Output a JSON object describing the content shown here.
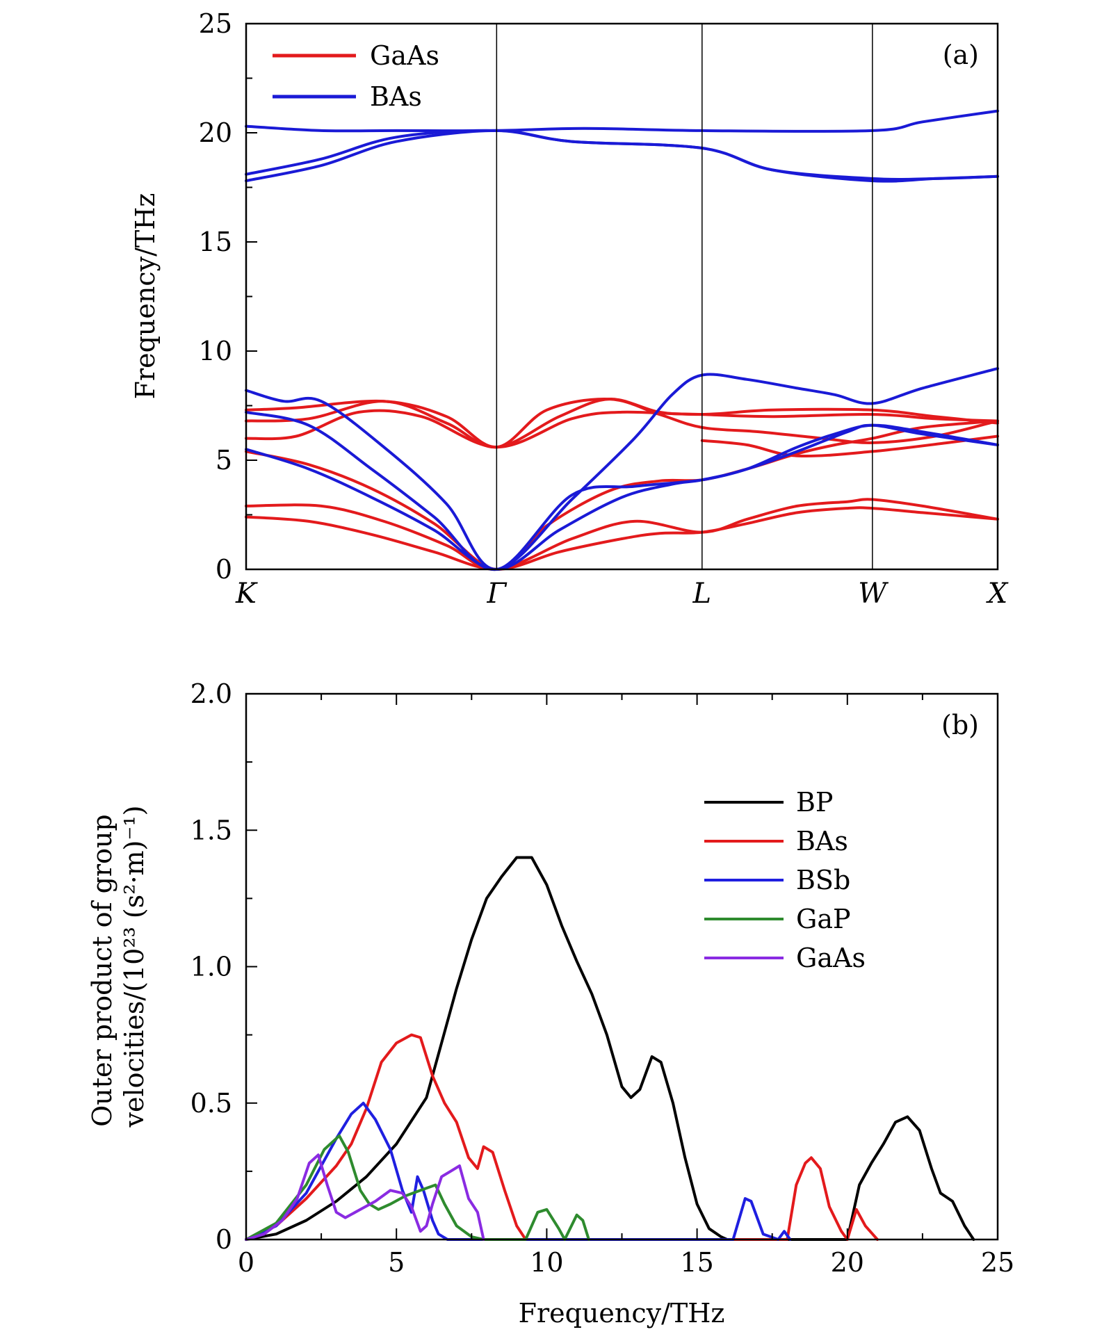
{
  "colors": {
    "GaAs": "#e31a1c",
    "BAs_a": "#1a1ad6",
    "BP": "#000000",
    "BAs_b": "#e31a1c",
    "BSb": "#1f1fe0",
    "GaP": "#2e8b2e",
    "GaAs_b": "#8a2be2"
  },
  "chart_data": [
    {
      "type": "line",
      "panel_label": "(a)",
      "xlabel": "",
      "ylabel": "Frequency/THz",
      "ylim": [
        0,
        25
      ],
      "yticks": [
        "0",
        "5",
        "10",
        "15",
        "20",
        "25"
      ],
      "high_symmetry_points": [
        {
          "label": "K",
          "x": 0.0
        },
        {
          "label": "Γ",
          "x": 1.0
        },
        {
          "label": "L",
          "x": 1.82
        },
        {
          "label": "W",
          "x": 2.5
        },
        {
          "label": "X",
          "x": 3.0
        }
      ],
      "legend": {
        "position": "top-left",
        "entries": [
          "GaAs",
          "BAs"
        ]
      },
      "series": [
        {
          "name": "GaAs",
          "color_key": "GaAs",
          "bands": [
            [
              [
                0,
                2.4
              ],
              [
                0.25,
                2.2
              ],
              [
                0.5,
                1.6
              ],
              [
                0.75,
                0.8
              ],
              [
                1,
                0
              ],
              [
                1.25,
                0.8
              ],
              [
                1.5,
                1.4
              ],
              [
                1.65,
                1.65
              ],
              [
                1.82,
                1.7
              ],
              [
                2.0,
                2.1
              ],
              [
                2.2,
                2.6
              ],
              [
                2.4,
                2.8
              ],
              [
                2.5,
                2.8
              ],
              [
                2.7,
                2.6
              ],
              [
                3,
                2.3
              ]
            ],
            [
              [
                0,
                2.9
              ],
              [
                0.3,
                2.9
              ],
              [
                0.55,
                2.2
              ],
              [
                0.8,
                1.1
              ],
              [
                1,
                0
              ],
              [
                1.3,
                1.4
              ],
              [
                1.55,
                2.2
              ],
              [
                1.82,
                1.7
              ],
              [
                2.0,
                2.3
              ],
              [
                2.2,
                2.9
              ],
              [
                2.4,
                3.1
              ],
              [
                2.5,
                3.2
              ],
              [
                2.7,
                2.9
              ],
              [
                3,
                2.3
              ]
            ],
            [
              [
                0,
                5.4
              ],
              [
                0.25,
                4.8
              ],
              [
                0.5,
                3.7
              ],
              [
                0.75,
                2.1
              ],
              [
                1,
                0
              ],
              [
                1.2,
                2.0
              ],
              [
                1.45,
                3.6
              ],
              [
                1.65,
                4.05
              ],
              [
                1.82,
                4.1
              ],
              [
                2.0,
                4.6
              ],
              [
                2.2,
                5.3
              ],
              [
                2.35,
                5.7
              ],
              [
                2.5,
                6.0
              ],
              [
                2.7,
                6.5
              ],
              [
                3,
                6.8
              ]
            ],
            [
              [
                0,
                6.0
              ],
              [
                0.2,
                6.1
              ],
              [
                0.45,
                7.2
              ],
              [
                0.7,
                7.0
              ],
              [
                1,
                5.6
              ],
              [
                1.3,
                6.9
              ],
              [
                1.5,
                7.2
              ],
              [
                1.82,
                7.1
              ],
              [
                2.1,
                7.3
              ],
              [
                2.5,
                7.3
              ],
              [
                2.75,
                7.0
              ],
              [
                3,
                6.7
              ]
            ],
            [
              [
                0,
                6.8
              ],
              [
                0.25,
                6.9
              ],
              [
                0.55,
                7.7
              ],
              [
                0.8,
                6.7
              ],
              [
                1,
                5.6
              ],
              [
                1.25,
                7.0
              ],
              [
                1.45,
                7.8
              ],
              [
                1.65,
                7.2
              ],
              [
                1.82,
                7.1
              ],
              [
                2.1,
                7.0
              ],
              [
                2.5,
                7.1
              ],
              [
                2.75,
                6.9
              ],
              [
                3,
                6.8
              ]
            ],
            [
              [
                0,
                7.3
              ],
              [
                0.2,
                7.4
              ],
              [
                0.55,
                7.7
              ],
              [
                0.8,
                7.0
              ],
              [
                1,
                5.6
              ],
              [
                1.2,
                7.3
              ],
              [
                1.45,
                7.8
              ],
              [
                1.65,
                7.1
              ],
              [
                1.82,
                6.5
              ],
              [
                2.05,
                6.3
              ],
              [
                2.3,
                6.0
              ],
              [
                2.5,
                5.8
              ],
              [
                2.75,
                6.1
              ],
              [
                3,
                6.8
              ]
            ],
            [
              [
                1.82,
                5.9
              ],
              [
                2.0,
                5.7
              ],
              [
                2.2,
                5.2
              ],
              [
                2.5,
                5.4
              ],
              [
                2.8,
                5.8
              ],
              [
                3,
                6.1
              ]
            ]
          ]
        },
        {
          "name": "BAs",
          "color_key": "BAs_a",
          "bands": [
            [
              [
                0,
                5.5
              ],
              [
                0.25,
                4.6
              ],
              [
                0.5,
                3.3
              ],
              [
                0.75,
                1.8
              ],
              [
                1,
                0
              ],
              [
                1.25,
                1.8
              ],
              [
                1.5,
                3.3
              ],
              [
                1.7,
                3.9
              ],
              [
                1.82,
                4.1
              ],
              [
                2.0,
                4.6
              ],
              [
                2.2,
                5.6
              ],
              [
                2.35,
                6.2
              ],
              [
                2.5,
                6.6
              ],
              [
                2.7,
                6.3
              ],
              [
                3,
                5.7
              ]
            ],
            [
              [
                0,
                7.2
              ],
              [
                0.25,
                6.6
              ],
              [
                0.5,
                4.6
              ],
              [
                0.75,
                2.4
              ],
              [
                1,
                0
              ],
              [
                1.3,
                3.2
              ],
              [
                1.55,
                6.0
              ],
              [
                1.7,
                8.0
              ],
              [
                1.82,
                8.9
              ],
              [
                2.0,
                8.7
              ],
              [
                2.2,
                8.3
              ],
              [
                2.35,
                8.0
              ],
              [
                2.5,
                7.6
              ],
              [
                2.7,
                8.3
              ],
              [
                3,
                9.2
              ]
            ],
            [
              [
                0,
                8.2
              ],
              [
                0.15,
                7.7
              ],
              [
                0.3,
                7.7
              ],
              [
                0.55,
                5.6
              ],
              [
                0.8,
                3.0
              ],
              [
                1,
                0
              ],
              [
                1.3,
                3.4
              ],
              [
                1.55,
                3.8
              ],
              [
                1.82,
                4.1
              ],
              [
                2.0,
                4.6
              ],
              [
                2.2,
                5.4
              ],
              [
                2.4,
                6.3
              ],
              [
                2.5,
                6.6
              ],
              [
                2.7,
                6.2
              ],
              [
                3,
                5.7
              ]
            ],
            [
              [
                0,
                17.8
              ],
              [
                0.3,
                18.5
              ],
              [
                0.6,
                19.6
              ],
              [
                1,
                20.1
              ],
              [
                1.3,
                19.6
              ],
              [
                1.82,
                19.3
              ],
              [
                2.1,
                18.3
              ],
              [
                2.5,
                17.8
              ],
              [
                2.75,
                17.9
              ],
              [
                3,
                18.0
              ]
            ],
            [
              [
                0,
                18.1
              ],
              [
                0.3,
                18.8
              ],
              [
                0.6,
                19.8
              ],
              [
                1,
                20.1
              ],
              [
                1.3,
                19.6
              ],
              [
                1.82,
                19.3
              ],
              [
                2.1,
                18.3
              ],
              [
                2.5,
                17.9
              ],
              [
                2.75,
                17.9
              ],
              [
                3,
                18.0
              ]
            ],
            [
              [
                0,
                20.3
              ],
              [
                0.3,
                20.1
              ],
              [
                0.6,
                20.1
              ],
              [
                1,
                20.1
              ],
              [
                1.35,
                20.2
              ],
              [
                1.82,
                20.1
              ],
              [
                2.5,
                20.1
              ],
              [
                2.7,
                20.5
              ],
              [
                3,
                21.0
              ]
            ]
          ]
        }
      ]
    },
    {
      "type": "line",
      "panel_label": "(b)",
      "xlabel": "Frequency/THz",
      "ylabel": "Outer product of group velocities/(10²³ (s²·m)⁻¹)",
      "xlim": [
        0,
        25
      ],
      "ylim": [
        0,
        2.0
      ],
      "xticks": [
        "0",
        "5",
        "10",
        "15",
        "20",
        "25"
      ],
      "yticks": [
        "0",
        "0.5",
        "1.0",
        "1.5",
        "2.0"
      ],
      "legend": {
        "position": "right-middle",
        "entries": [
          "BP",
          "BAs",
          "BSb",
          "GaP",
          "GaAs"
        ]
      },
      "series": [
        {
          "name": "BP",
          "color_key": "BP",
          "x": [
            0,
            1,
            2,
            3,
            4,
            5,
            6,
            6.5,
            7,
            7.5,
            8,
            8.5,
            9,
            9.5,
            10,
            10.5,
            11,
            11.5,
            12,
            12.5,
            12.8,
            13.1,
            13.5,
            13.8,
            14.2,
            14.6,
            15,
            15.4,
            15.8,
            16,
            20,
            20.4,
            20.8,
            21.2,
            21.6,
            22,
            22.4,
            22.8,
            23.1,
            23.5,
            23.9,
            24.2
          ],
          "y": [
            0,
            0.02,
            0.07,
            0.14,
            0.23,
            0.35,
            0.52,
            0.72,
            0.92,
            1.1,
            1.25,
            1.33,
            1.4,
            1.4,
            1.3,
            1.15,
            1.02,
            0.9,
            0.75,
            0.56,
            0.52,
            0.55,
            0.67,
            0.65,
            0.5,
            0.3,
            0.13,
            0.04,
            0.01,
            0,
            0,
            0.2,
            0.28,
            0.35,
            0.43,
            0.45,
            0.4,
            0.26,
            0.17,
            0.14,
            0.05,
            0
          ]
        },
        {
          "name": "BAs",
          "color_key": "BAs_b",
          "x": [
            0,
            1,
            2,
            3,
            3.5,
            4,
            4.5,
            5,
            5.5,
            5.8,
            6.2,
            6.6,
            7,
            7.4,
            7.7,
            7.9,
            8.2,
            8.6,
            9,
            9.3,
            18,
            18.3,
            18.6,
            18.8,
            19.1,
            19.4,
            19.8,
            20,
            20.3,
            20.6,
            21
          ],
          "y": [
            0,
            0.05,
            0.15,
            0.27,
            0.35,
            0.48,
            0.65,
            0.72,
            0.75,
            0.74,
            0.6,
            0.5,
            0.43,
            0.3,
            0.26,
            0.34,
            0.32,
            0.18,
            0.05,
            0,
            0,
            0.2,
            0.28,
            0.3,
            0.26,
            0.12,
            0.03,
            0,
            0.11,
            0.05,
            0
          ]
        },
        {
          "name": "BSb",
          "color_key": "BSb",
          "x": [
            0,
            1,
            2,
            3,
            3.5,
            3.9,
            4.3,
            4.8,
            5.2,
            5.5,
            5.7,
            5.9,
            6.2,
            6.4,
            6.7,
            16.2,
            16.6,
            16.8,
            17.2,
            17.7,
            17.9,
            18.1
          ],
          "y": [
            0,
            0.05,
            0.17,
            0.37,
            0.46,
            0.5,
            0.44,
            0.33,
            0.18,
            0.1,
            0.23,
            0.18,
            0.07,
            0.02,
            0,
            0,
            0.15,
            0.14,
            0.02,
            0,
            0.03,
            0
          ],
          "flat_to": 16.2
        },
        {
          "name": "GaP",
          "color_key": "GaP",
          "x": [
            0,
            1,
            2,
            2.6,
            3.1,
            3.4,
            3.8,
            4.1,
            4.4,
            4.8,
            5.3,
            5.8,
            6.3,
            6.6,
            7,
            7.5,
            7.9,
            9.3,
            9.7,
            10,
            10.4,
            10.6,
            11,
            11.2,
            11.4
          ],
          "y": [
            0,
            0.06,
            0.2,
            0.33,
            0.38,
            0.32,
            0.18,
            0.13,
            0.11,
            0.13,
            0.16,
            0.18,
            0.2,
            0.13,
            0.05,
            0.01,
            0,
            0,
            0.1,
            0.11,
            0.04,
            0,
            0.09,
            0.07,
            0
          ]
        },
        {
          "name": "GaAs",
          "color_key": "GaAs_b",
          "x": [
            0,
            0.6,
            1.2,
            1.7,
            2.1,
            2.4,
            2.7,
            3,
            3.3,
            3.8,
            4.3,
            4.8,
            5.2,
            5.5,
            5.8,
            6,
            6.2,
            6.5,
            6.8,
            7.1,
            7.4,
            7.7,
            7.9
          ],
          "y": [
            0,
            0.02,
            0.07,
            0.15,
            0.28,
            0.31,
            0.2,
            0.1,
            0.08,
            0.11,
            0.14,
            0.18,
            0.17,
            0.12,
            0.03,
            0.05,
            0.13,
            0.23,
            0.25,
            0.27,
            0.15,
            0.1,
            0
          ]
        }
      ]
    }
  ]
}
